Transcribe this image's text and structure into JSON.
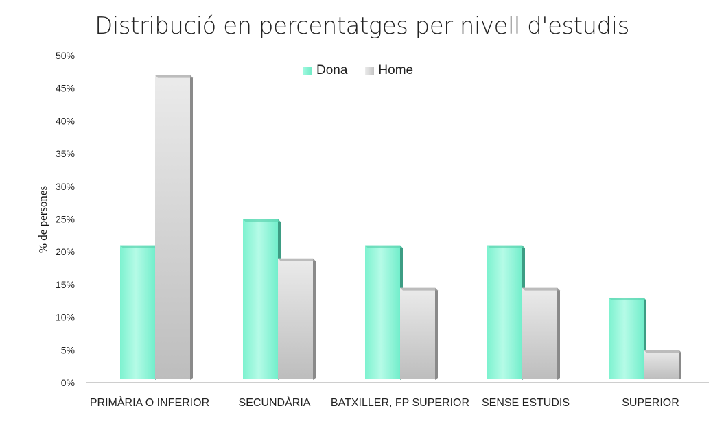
{
  "chart_data": {
    "type": "bar",
    "title": "Distribució en percentatges per nivell d'estudis",
    "ylabel": "% de persones",
    "xlabel": "",
    "categories": [
      "PRIMÀRIA O INFERIOR",
      "SECUNDÀRIA",
      "BATXILLER, FP SUPERIOR",
      "SENSE ESTUDIS",
      "SUPERIOR"
    ],
    "series": [
      {
        "name": "Dona",
        "values": [
          21,
          25,
          21,
          21,
          13
        ],
        "color": "#7ff5d2"
      },
      {
        "name": "Home",
        "values": [
          47,
          19,
          14.5,
          14.5,
          5
        ],
        "color": "#d8d8d8"
      }
    ],
    "ylim": [
      0,
      50
    ],
    "yticks": [
      "0%",
      "5%",
      "10%",
      "15%",
      "20%",
      "25%",
      "30%",
      "35%",
      "40%",
      "45%",
      "50%"
    ],
    "legend_position": "top-center",
    "grid": false
  }
}
